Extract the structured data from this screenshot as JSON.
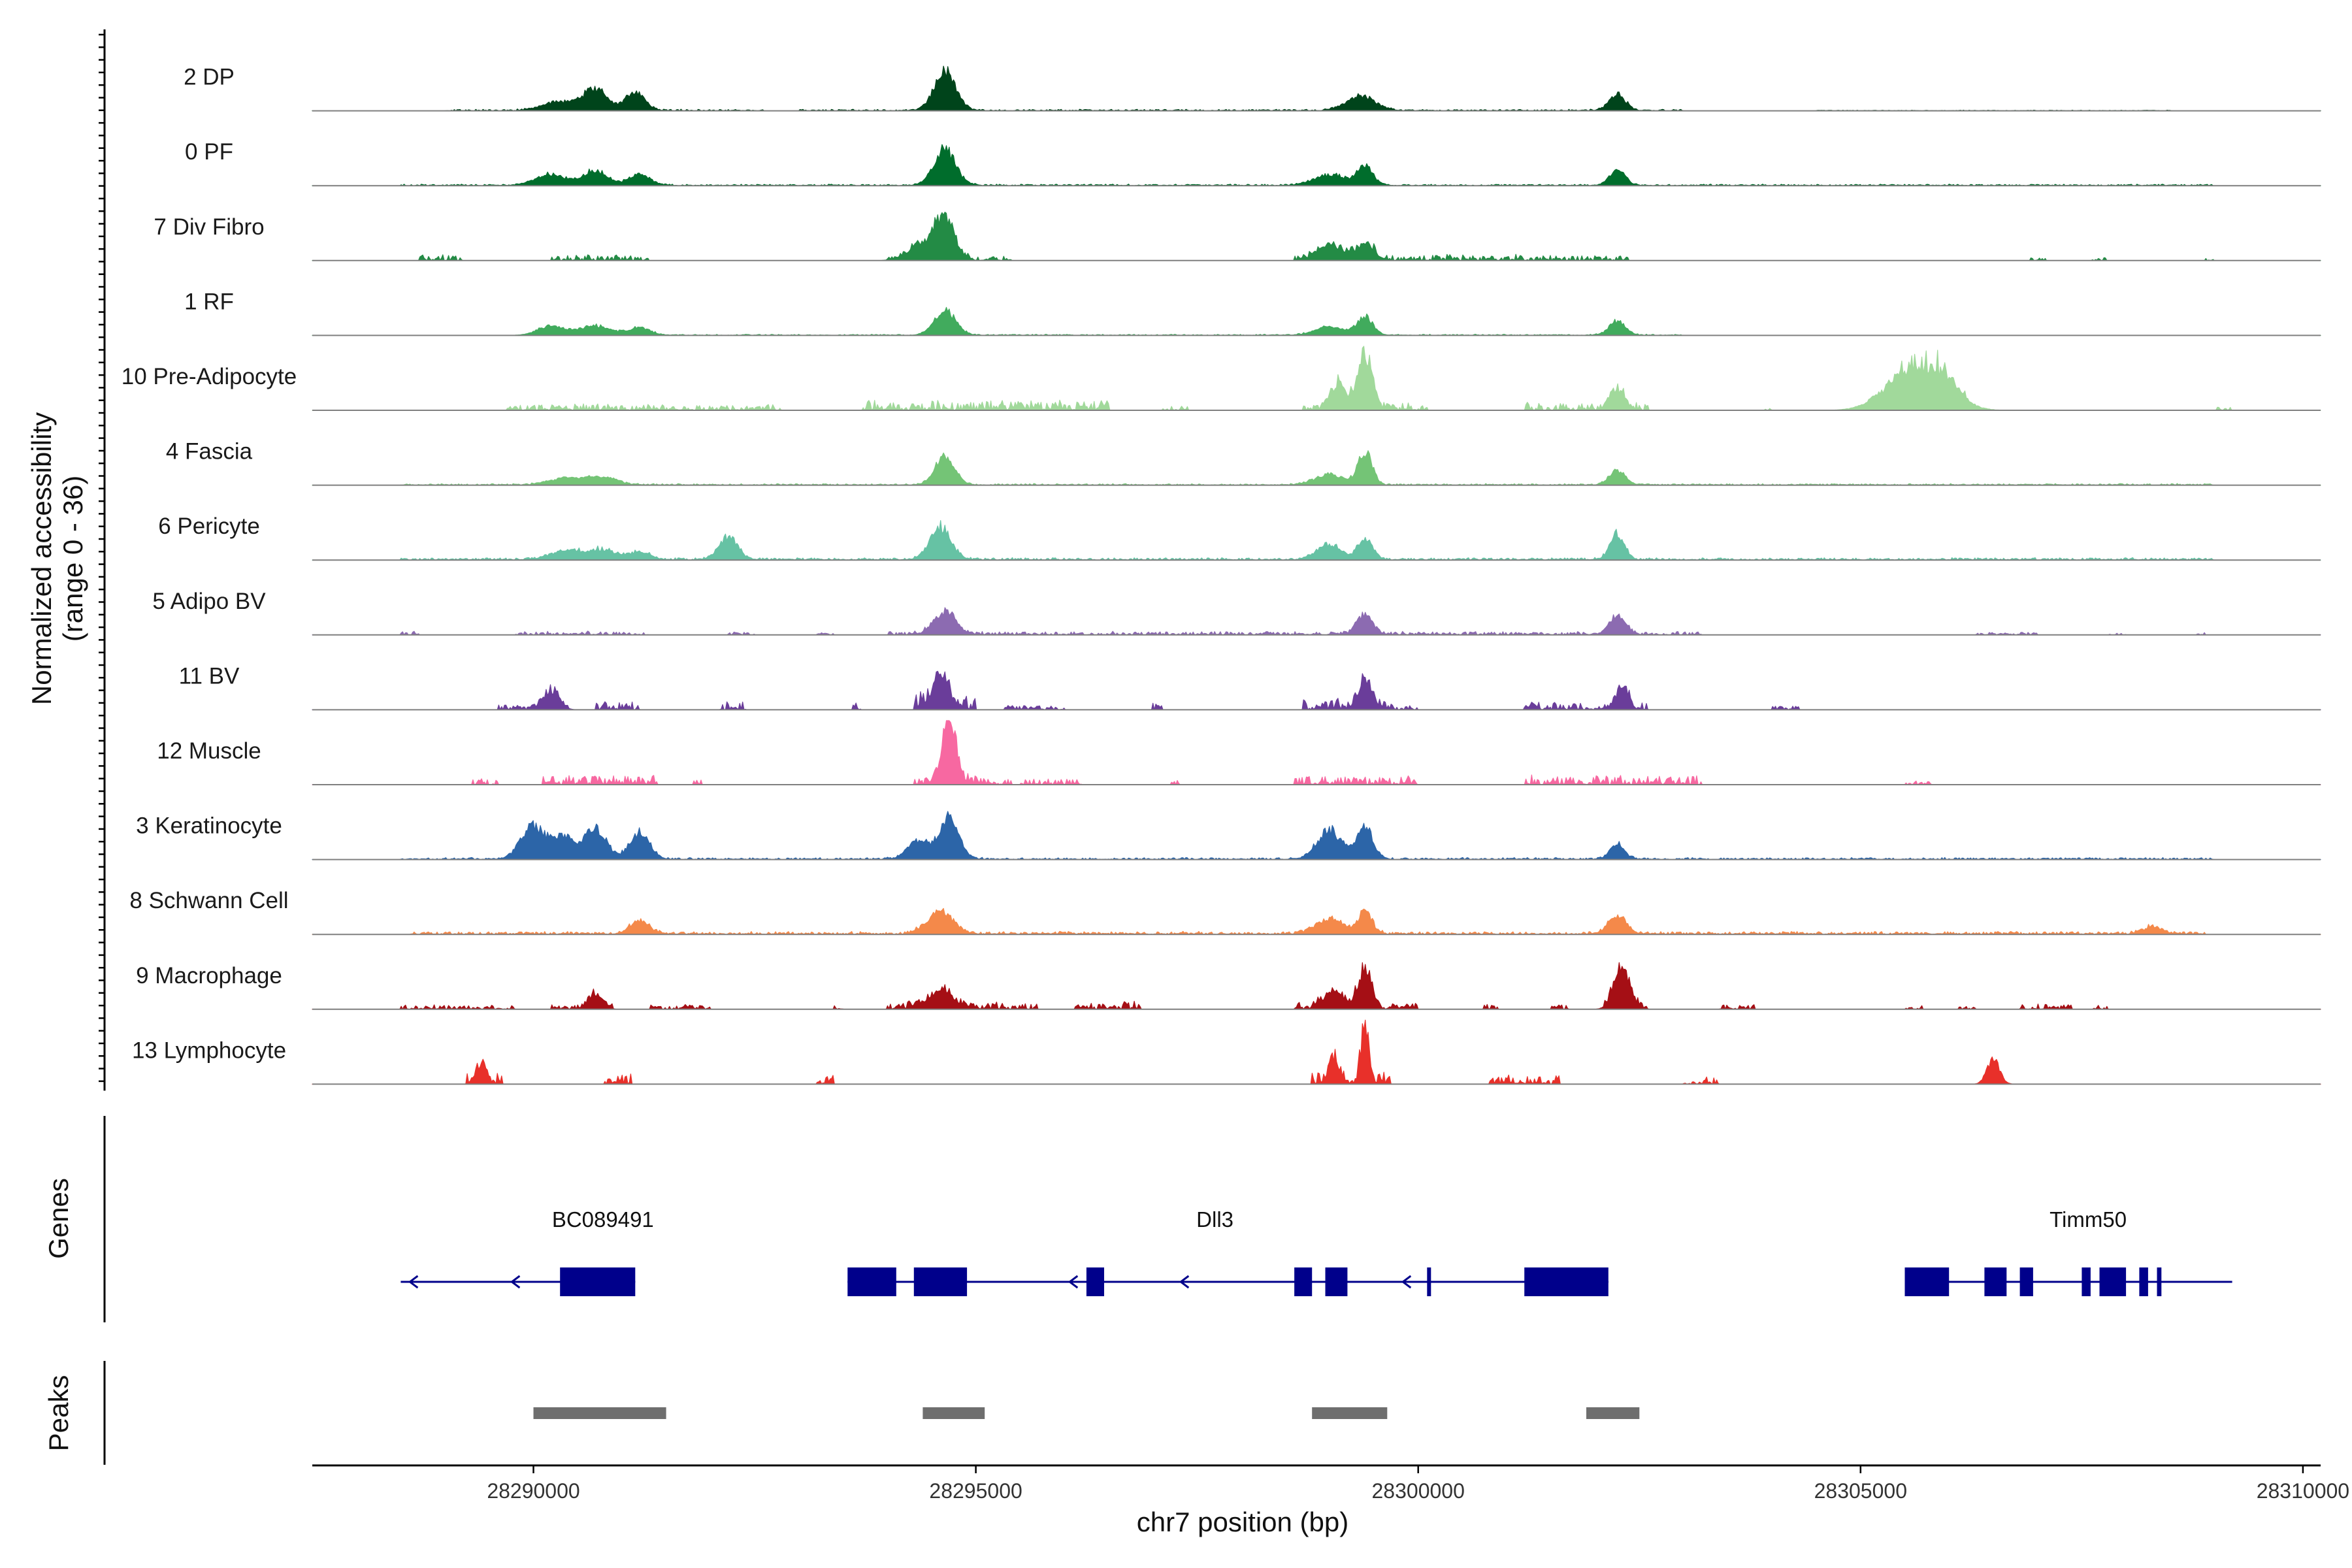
{
  "chart_data": {
    "type": "area",
    "title": "",
    "ylabel_lines": [
      "Normalized accessibility",
      "(range 0 - 36)"
    ],
    "y_range": [
      0,
      36
    ],
    "xlabel": "chr7 position (bp)",
    "xlim": [
      28287500,
      28310200
    ],
    "x_ticks": [
      28290000,
      28295000,
      28300000,
      28305000,
      28310000
    ],
    "x_tick_labels": [
      "28290000",
      "28295000",
      "28300000",
      "28305000",
      "28310000"
    ],
    "tracks": [
      {
        "name": "2 DP",
        "color": "#00441b",
        "peaks": [
          [
            28290300,
            5,
            180
          ],
          [
            28290700,
            12,
            130
          ],
          [
            28291150,
            10,
            110
          ],
          [
            28294650,
            22,
            120
          ],
          [
            28299350,
            8,
            160
          ],
          [
            28302250,
            9,
            90
          ]
        ],
        "noise": [
          [
            28289000,
            28292600,
            0.8
          ],
          [
            28293000,
            28303000,
            0.8
          ],
          [
            28304500,
            28308500,
            0.35
          ]
        ]
      },
      {
        "name": "0 PF",
        "color": "#006d2c",
        "peaks": [
          [
            28290200,
            6,
            170
          ],
          [
            28290700,
            8,
            140
          ],
          [
            28291200,
            6,
            120
          ],
          [
            28294650,
            20,
            120
          ],
          [
            28299000,
            6,
            180
          ],
          [
            28299400,
            10,
            90
          ],
          [
            28302250,
            8,
            90
          ]
        ],
        "noise": [
          [
            28288500,
            28309000,
            0.8
          ]
        ]
      },
      {
        "name": "7 Div Fibro",
        "color": "#238b45",
        "peaks": [
          [
            28294650,
            22,
            110
          ],
          [
            28294400,
            9,
            160
          ],
          [
            28299000,
            8,
            140
          ],
          [
            28299400,
            9,
            100
          ]
        ],
        "noise": [
          [
            28288700,
            28289200,
            3.5
          ],
          [
            28290200,
            28291300,
            3.2
          ],
          [
            28294000,
            28295400,
            2.5
          ],
          [
            28298600,
            28301200,
            3.2
          ],
          [
            28301200,
            28302400,
            2.8
          ],
          [
            28306900,
            28307100,
            1.5
          ],
          [
            28307600,
            28307800,
            1.5
          ],
          [
            28308900,
            28309000,
            1.5
          ]
        ]
      },
      {
        "name": "1 RF",
        "color": "#41ab5d",
        "peaks": [
          [
            28290200,
            5,
            150
          ],
          [
            28290700,
            5,
            180
          ],
          [
            28291200,
            4,
            120
          ],
          [
            28294650,
            14,
            120
          ],
          [
            28299000,
            5,
            160
          ],
          [
            28299400,
            10,
            90
          ],
          [
            28302250,
            8,
            90
          ]
        ],
        "noise": [
          [
            28290000,
            28303000,
            0.6
          ]
        ]
      },
      {
        "name": "10 Pre-Adipocyte",
        "color": "#a1d99b",
        "peaks": [
          [
            28299400,
            30,
            80
          ],
          [
            28299100,
            14,
            90
          ],
          [
            28302250,
            12,
            80
          ],
          [
            28305500,
            18,
            260
          ],
          [
            28305900,
            15,
            220
          ]
        ],
        "noise": [
          [
            28289700,
            28292800,
            3.2
          ],
          [
            28293700,
            28296500,
            5.5
          ],
          [
            28297100,
            28297400,
            2.5
          ],
          [
            28298700,
            28300100,
            4
          ],
          [
            28301200,
            28302600,
            4
          ],
          [
            28303900,
            28304000,
            1.8
          ],
          [
            28305400,
            28306200,
            8
          ],
          [
            28309000,
            28309200,
            2
          ]
        ]
      },
      {
        "name": "4 Fascia",
        "color": "#74c476",
        "peaks": [
          [
            28290400,
            4,
            200
          ],
          [
            28290800,
            4,
            150
          ],
          [
            28294650,
            16,
            110
          ],
          [
            28299000,
            6,
            160
          ],
          [
            28299400,
            18,
            80
          ],
          [
            28302250,
            8,
            90
          ]
        ],
        "noise": [
          [
            28288500,
            28309000,
            0.8
          ]
        ]
      },
      {
        "name": "6 Pericyte",
        "color": "#66c2a4",
        "peaks": [
          [
            28290400,
            5,
            200
          ],
          [
            28290800,
            5,
            150
          ],
          [
            28291200,
            4,
            120
          ],
          [
            28292200,
            12,
            110
          ],
          [
            28294600,
            18,
            120
          ],
          [
            28299000,
            8,
            140
          ],
          [
            28299400,
            12,
            80
          ],
          [
            28302250,
            14,
            80
          ]
        ],
        "noise": [
          [
            28288500,
            28309000,
            1.2
          ]
        ]
      },
      {
        "name": "5 Adipo BV",
        "color": "#8c6bb1",
        "peaks": [
          [
            28294650,
            13,
            120
          ],
          [
            28299400,
            11,
            90
          ],
          [
            28302250,
            10,
            90
          ]
        ],
        "noise": [
          [
            28288500,
            28288700,
            2.5
          ],
          [
            28289800,
            28291300,
            2
          ],
          [
            28292200,
            28292500,
            1.8
          ],
          [
            28293200,
            28293400,
            1.5
          ],
          [
            28294000,
            28303200,
            1.8
          ],
          [
            28306300,
            28307000,
            1.5
          ],
          [
            28307800,
            28308000,
            1.5
          ],
          [
            28308800,
            28308900,
            1.2
          ]
        ]
      },
      {
        "name": "11 BV",
        "color": "#6a3d9a",
        "peaks": [
          [
            28290200,
            10,
            90
          ],
          [
            28294600,
            16,
            100
          ],
          [
            28299400,
            16,
            80
          ],
          [
            28302300,
            12,
            70
          ]
        ],
        "noise": [
          [
            28289600,
            28290400,
            3
          ],
          [
            28290700,
            28291200,
            4.5
          ],
          [
            28292100,
            28292400,
            5.5
          ],
          [
            28293600,
            28293700,
            3.5
          ],
          [
            28294300,
            28295000,
            8
          ],
          [
            28295300,
            28296000,
            2.5
          ],
          [
            28297000,
            28297100,
            4
          ],
          [
            28298700,
            28299700,
            6
          ],
          [
            28299700,
            28300000,
            2.5
          ],
          [
            28301200,
            28302600,
            4
          ],
          [
            28304000,
            28304300,
            2.5
          ]
        ]
      },
      {
        "name": "12 Muscle",
        "color": "#f768a1",
        "peaks": [
          [
            28294700,
            36,
            80
          ]
        ],
        "noise": [
          [
            28289300,
            28289600,
            4
          ],
          [
            28290100,
            28291400,
            5
          ],
          [
            28291800,
            28291900,
            3
          ],
          [
            28294300,
            28295400,
            5
          ],
          [
            28295500,
            28296200,
            3
          ],
          [
            28297200,
            28297300,
            3
          ],
          [
            28298600,
            28300000,
            4.5
          ],
          [
            28301200,
            28303200,
            5
          ],
          [
            28305500,
            28305800,
            2
          ]
        ]
      },
      {
        "name": "3 Keratinocyte",
        "color": "#2c65a8",
        "peaks": [
          [
            28290000,
            18,
            140
          ],
          [
            28290350,
            12,
            120
          ],
          [
            28290700,
            17,
            120
          ],
          [
            28291200,
            15,
            110
          ],
          [
            28294700,
            24,
            110
          ],
          [
            28294350,
            10,
            120
          ],
          [
            28299000,
            16,
            140
          ],
          [
            28299400,
            17,
            90
          ],
          [
            28302250,
            9,
            80
          ]
        ],
        "noise": [
          [
            28288500,
            28309000,
            1
          ]
        ]
      },
      {
        "name": "8 Schwann Cell",
        "color": "#f4894a",
        "peaks": [
          [
            28291200,
            7,
            110
          ],
          [
            28294600,
            12,
            150
          ],
          [
            28299000,
            8,
            160
          ],
          [
            28299400,
            12,
            80
          ],
          [
            28302250,
            10,
            100
          ],
          [
            28308300,
            4,
            100
          ]
        ],
        "noise": [
          [
            28288600,
            28308900,
            1.5
          ]
        ]
      },
      {
        "name": "9 Macrophage",
        "color": "#a50f15",
        "peaks": [
          [
            28290700,
            8,
            80
          ],
          [
            28294600,
            9,
            150
          ],
          [
            28299400,
            24,
            70
          ],
          [
            28299050,
            10,
            110
          ],
          [
            28302300,
            22,
            90
          ]
        ],
        "noise": [
          [
            28288500,
            28289800,
            2.5
          ],
          [
            28290200,
            28290900,
            3
          ],
          [
            28291300,
            28292000,
            2.5
          ],
          [
            28293400,
            28293500,
            2.5
          ],
          [
            28294000,
            28295700,
            4
          ],
          [
            28296100,
            28296900,
            4
          ],
          [
            28298600,
            28300000,
            4
          ],
          [
            28300700,
            28300900,
            2.5
          ],
          [
            28301500,
            28301700,
            2.5
          ],
          [
            28302100,
            28302600,
            4
          ],
          [
            28303400,
            28303800,
            3
          ],
          [
            28305500,
            28305700,
            2
          ],
          [
            28306100,
            28306300,
            2
          ],
          [
            28306800,
            28307400,
            3
          ],
          [
            28307600,
            28307800,
            2
          ]
        ]
      },
      {
        "name": "13 Lymphocyte",
        "color": "#e8302a",
        "peaks": [
          [
            28289400,
            9,
            60
          ],
          [
            28299050,
            14,
            60
          ],
          [
            28299400,
            32,
            45
          ],
          [
            28306500,
            14,
            70
          ]
        ],
        "noise": [
          [
            28289250,
            28289650,
            6
          ],
          [
            28290800,
            28291100,
            5
          ],
          [
            28293200,
            28293400,
            5
          ],
          [
            28298800,
            28299700,
            6
          ],
          [
            28300800,
            28301600,
            5
          ],
          [
            28303000,
            28303400,
            4
          ]
        ]
      }
    ],
    "genes_title": "Genes",
    "gene_names": [
      "BC089491",
      "Dll3",
      "Timm50"
    ],
    "gene_color": "#00008b",
    "genes": [
      {
        "name": "BC089491",
        "start": 28288500,
        "end": 28291150,
        "exons": [
          [
            28290300,
            28291150
          ]
        ]
      },
      {
        "name": "Dll3",
        "start": 28293550,
        "end": 28302150,
        "exons": [
          [
            28293550,
            28294100
          ],
          [
            28294300,
            28294900
          ],
          [
            28296250,
            28296450
          ],
          [
            28298600,
            28298800
          ],
          [
            28298950,
            28299200
          ],
          [
            28300100,
            28300140
          ],
          [
            28301200,
            28302150
          ]
        ]
      },
      {
        "name": "Timm50",
        "start": 28305500,
        "end": 28309200,
        "exons": [
          [
            28305500,
            28306000
          ],
          [
            28306400,
            28306650
          ],
          [
            28306800,
            28306950
          ],
          [
            28307500,
            28307600
          ],
          [
            28307700,
            28308000
          ],
          [
            28308150,
            28308250
          ],
          [
            28308350,
            28308400
          ]
        ]
      }
    ],
    "peaks_title": "Peaks",
    "peaks_color": "#6e6e6e",
    "peak_regions": [
      [
        28290000,
        28291500
      ],
      [
        28294400,
        28295100
      ],
      [
        28298800,
        28299650
      ],
      [
        28301900,
        28302500
      ]
    ]
  }
}
